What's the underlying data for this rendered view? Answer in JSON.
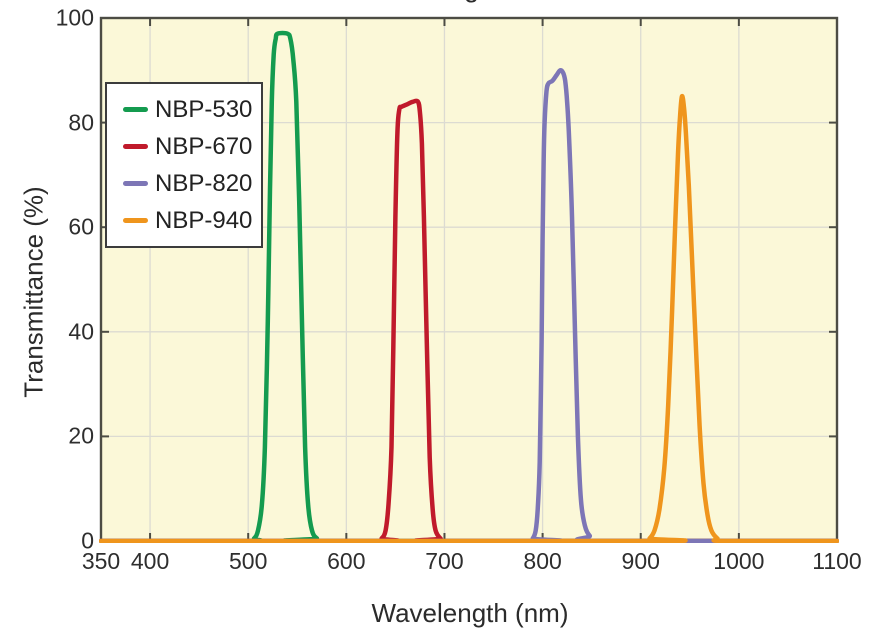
{
  "figure": {
    "clipped_title_fragment": "g"
  },
  "chart_data": {
    "type": "line",
    "title": "",
    "xlabel": "Wavelength  (nm)",
    "ylabel": "Transmittance  (%)",
    "xlim": [
      350,
      1100
    ],
    "ylim": [
      0,
      100
    ],
    "x_ticks": [
      350,
      400,
      500,
      600,
      700,
      800,
      900,
      1000,
      1100
    ],
    "y_ticks": [
      0,
      20,
      40,
      60,
      80,
      100
    ],
    "x_gridlines": [
      400,
      500,
      600,
      700,
      800,
      900,
      1000
    ],
    "y_gridlines": [
      20,
      40,
      60,
      80
    ],
    "grid": true,
    "legend_position": "upper-left",
    "plot_bg_color": "#fbf8d8",
    "grid_color": "#dcdbd2",
    "axis_color": "#4c4c44",
    "series": [
      {
        "name": "NBP-530",
        "color": "#149b4f",
        "peak_nm": 535,
        "peak_transmittance_pct": 97,
        "points": [
          [
            350,
            0
          ],
          [
            500,
            0
          ],
          [
            506,
            0.5
          ],
          [
            510,
            2
          ],
          [
            514,
            7
          ],
          [
            517,
            18
          ],
          [
            520,
            42
          ],
          [
            522,
            65
          ],
          [
            524,
            84
          ],
          [
            526,
            93
          ],
          [
            528,
            96
          ],
          [
            530,
            97
          ],
          [
            540,
            97
          ],
          [
            543,
            96
          ],
          [
            546,
            92
          ],
          [
            549,
            84
          ],
          [
            552,
            65
          ],
          [
            555,
            40
          ],
          [
            558,
            18
          ],
          [
            561,
            7
          ],
          [
            565,
            2
          ],
          [
            570,
            0.5
          ],
          [
            578,
            0
          ],
          [
            1100,
            0
          ]
        ]
      },
      {
        "name": "NBP-670",
        "color": "#c01a2b",
        "peak_nm": 670,
        "peak_transmittance_pct": 84,
        "points": [
          [
            350,
            0
          ],
          [
            630,
            0
          ],
          [
            636,
            0.5
          ],
          [
            640,
            2
          ],
          [
            643,
            7
          ],
          [
            646,
            18
          ],
          [
            648,
            38
          ],
          [
            650,
            62
          ],
          [
            652,
            78
          ],
          [
            654,
            82.5
          ],
          [
            656,
            83
          ],
          [
            662,
            83.5
          ],
          [
            668,
            84
          ],
          [
            673,
            84
          ],
          [
            675,
            82
          ],
          [
            677,
            76
          ],
          [
            679,
            62
          ],
          [
            682,
            38
          ],
          [
            685,
            16
          ],
          [
            688,
            6
          ],
          [
            691,
            2
          ],
          [
            696,
            0.5
          ],
          [
            702,
            0
          ],
          [
            1100,
            0
          ]
        ]
      },
      {
        "name": "NBP-820",
        "color": "#7d76b6",
        "peak_nm": 820,
        "peak_transmittance_pct": 90,
        "points": [
          [
            350,
            0
          ],
          [
            785,
            0
          ],
          [
            790,
            0.5
          ],
          [
            793,
            2
          ],
          [
            795,
            6
          ],
          [
            797,
            15
          ],
          [
            799,
            38
          ],
          [
            800,
            58
          ],
          [
            801,
            72
          ],
          [
            802,
            80
          ],
          [
            804,
            86
          ],
          [
            806,
            87.5
          ],
          [
            810,
            88
          ],
          [
            814,
            89
          ],
          [
            818,
            90
          ],
          [
            821,
            89.5
          ],
          [
            823,
            88
          ],
          [
            825,
            84
          ],
          [
            827,
            77
          ],
          [
            830,
            62
          ],
          [
            833,
            40
          ],
          [
            836,
            20
          ],
          [
            839,
            8
          ],
          [
            843,
            3
          ],
          [
            848,
            1
          ],
          [
            855,
            0
          ],
          [
            1100,
            0
          ]
        ]
      },
      {
        "name": "NBP-940",
        "color": "#ef951d",
        "peak_nm": 940,
        "peak_transmittance_pct": 85,
        "points": [
          [
            350,
            0
          ],
          [
            903,
            0
          ],
          [
            909,
            0.5
          ],
          [
            914,
            2
          ],
          [
            919,
            6
          ],
          [
            924,
            14
          ],
          [
            928,
            26
          ],
          [
            932,
            44
          ],
          [
            935,
            60
          ],
          [
            938,
            74
          ],
          [
            940,
            81
          ],
          [
            942,
            85
          ],
          [
            944,
            83
          ],
          [
            946,
            78
          ],
          [
            949,
            68
          ],
          [
            952,
            55
          ],
          [
            956,
            38
          ],
          [
            960,
            22
          ],
          [
            964,
            11
          ],
          [
            968,
            5
          ],
          [
            972,
            2
          ],
          [
            978,
            0.5
          ],
          [
            985,
            0
          ],
          [
            1100,
            0
          ]
        ]
      }
    ]
  }
}
